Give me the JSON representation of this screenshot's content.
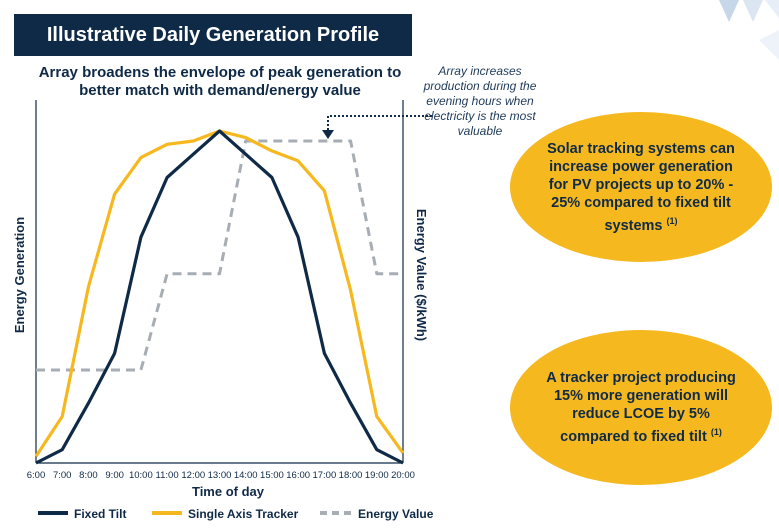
{
  "header": {
    "title": "Illustrative Daily Generation Profile"
  },
  "chart_subtitle": "Array broadens the envelope of peak generation to better match with demand/energy value",
  "annotation": "Array increases production during the evening hours when electricity is the most valuable",
  "callouts": [
    {
      "text": "Solar tracking systems can increase power generation for PV projects up to 20% - 25% compared to fixed tilt systems",
      "note": "(1)"
    },
    {
      "text": "A tracker project producing 15% more generation will reduce LCOE by 5% compared to fixed tilt",
      "note": "(1)"
    }
  ],
  "colors": {
    "navy": "#0f2a47",
    "orange": "#f6b81f",
    "gray": "#a7adb5"
  },
  "chart_data": {
    "type": "line",
    "xlabel": "Time of day",
    "ylabel_left": "Energy Generation",
    "ylabel_right": "Energy Value ($/kWh)",
    "x": [
      "6:00",
      "7:00",
      "8:00",
      "9:00",
      "10:00",
      "11:00",
      "12:00",
      "13:00",
      "14:00",
      "15:00",
      "16:00",
      "17:00",
      "18:00",
      "19:00",
      "20:00"
    ],
    "ylim": [
      0,
      100
    ],
    "grid": false,
    "legend_position": "bottom",
    "series": [
      {
        "name": "Fixed Tilt",
        "style": "solid",
        "color": "#0f2a47",
        "values": [
          0,
          4,
          18,
          33,
          68,
          86,
          93,
          100,
          93,
          86,
          68,
          33,
          18,
          4,
          0
        ]
      },
      {
        "name": "Single Axis Tracker",
        "style": "solid",
        "color": "#f6b81f",
        "values": [
          2,
          14,
          53,
          81,
          92,
          96,
          97,
          100,
          98,
          94,
          91,
          82,
          52,
          14,
          3
        ]
      },
      {
        "name": "Energy Value",
        "style": "dashed",
        "color": "#a7adb5",
        "values": [
          28,
          28,
          28,
          28,
          28,
          57,
          57,
          57,
          97,
          97,
          97,
          97,
          97,
          57,
          57
        ]
      }
    ]
  }
}
